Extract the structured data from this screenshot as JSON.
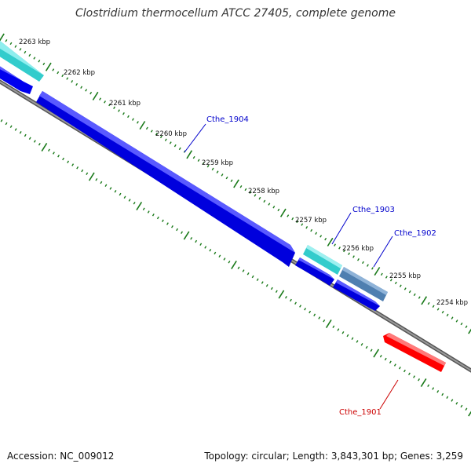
{
  "title": "Clostridium thermocellum ATCC 27405, complete genome",
  "accession_text": "Accession: NC_009012",
  "topology_text": "Topology: circular; Length: 3,843,301 bp; Genes: 3,259",
  "kbp_labels": [
    "2263 kbp",
    "2262 kbp",
    "2261 kbp",
    "2260 kbp",
    "2259 kbp",
    "2258 kbp",
    "2257 kbp",
    "2256 kbp",
    "2255 kbp",
    "2254 kbp"
  ],
  "gene_labels": {
    "cthe_1904": "Cthe_1904",
    "cthe_1903": "Cthe_1903",
    "cthe_1902": "Cthe_1902",
    "cthe_1901": "Cthe_1901"
  },
  "colors": {
    "backbone": "#808080",
    "tick": "#1a7a1a",
    "forward_cds": "#0000ee",
    "reverse_cds": "#ff0000",
    "cyan_feature": "#33cccc",
    "steel_feature": "#4f7fb0",
    "label_blue": "#0000cc",
    "label_red": "#cc0000"
  }
}
